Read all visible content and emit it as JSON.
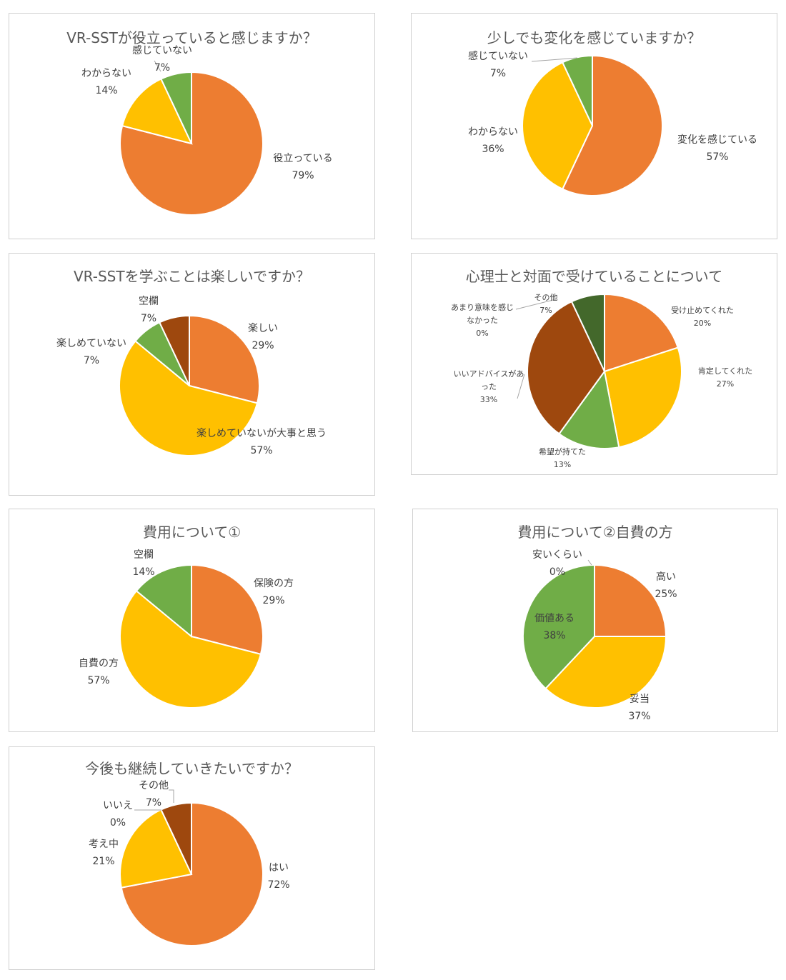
{
  "colors": {
    "orange": "#ED7D31",
    "gold": "#FFC000",
    "green": "#70AD47",
    "brown": "#9E480E",
    "darkgreen": "#43682B"
  },
  "chart_data": [
    {
      "type": "pie",
      "title": "VR-SSTが役立っていると感じますか？",
      "slices": [
        {
          "name": "役立っている",
          "value": 79,
          "label": "79%",
          "color": "#ED7D31"
        },
        {
          "name": "わからない",
          "value": 14,
          "label": "14%",
          "color": "#FFC000"
        },
        {
          "name": "感じていない",
          "value": 7,
          "label": "7%",
          "color": "#70AD47"
        }
      ]
    },
    {
      "type": "pie",
      "title": "少しでも変化を感じていますか？",
      "slices": [
        {
          "name": "変化を感じている",
          "value": 57,
          "label": "57%",
          "color": "#ED7D31"
        },
        {
          "name": "わからない",
          "value": 36,
          "label": "36%",
          "color": "#FFC000"
        },
        {
          "name": "感じていない",
          "value": 7,
          "label": "7%",
          "color": "#70AD47"
        }
      ]
    },
    {
      "type": "pie",
      "title": "VR-SSTを学ぶことは楽しいですか？",
      "slices": [
        {
          "name": "楽しい",
          "value": 29,
          "label": "29%",
          "color": "#ED7D31"
        },
        {
          "name": "楽しめていないが大事と思う",
          "value": 57,
          "label": "57%",
          "color": "#FFC000"
        },
        {
          "name": "楽しめていない",
          "value": 7,
          "label": "7%",
          "color": "#70AD47"
        },
        {
          "name": "空欄",
          "value": 7,
          "label": "7%",
          "color": "#9E480E"
        }
      ]
    },
    {
      "type": "pie",
      "title": "心理士と対面で受けていることについて",
      "slices": [
        {
          "name": "受け止めてくれた",
          "value": 20,
          "label": "20%",
          "color": "#ED7D31"
        },
        {
          "name": "肯定してくれた",
          "value": 27,
          "label": "27%",
          "color": "#FFC000"
        },
        {
          "name": "希望が持てた",
          "value": 13,
          "label": "13%",
          "color": "#70AD47"
        },
        {
          "name": "いいアドバイスがあった",
          "value": 33,
          "label": "33%",
          "color": "#9E480E"
        },
        {
          "name": "あまり意味を感じなかった",
          "value": 0,
          "label": "0%",
          "color": "#264478"
        },
        {
          "name": "その他",
          "value": 7,
          "label": "7%",
          "color": "#43682B"
        }
      ]
    },
    {
      "type": "pie",
      "title": "費用について①",
      "slices": [
        {
          "name": "保険の方",
          "value": 29,
          "label": "29%",
          "color": "#ED7D31"
        },
        {
          "name": "自費の方",
          "value": 57,
          "label": "57%",
          "color": "#FFC000"
        },
        {
          "name": "空欄",
          "value": 14,
          "label": "14%",
          "color": "#70AD47"
        }
      ]
    },
    {
      "type": "pie",
      "title": "費用について②自費の方",
      "slices": [
        {
          "name": "高い",
          "value": 25,
          "label": "25%",
          "color": "#ED7D31"
        },
        {
          "name": "妥当",
          "value": 37,
          "label": "37%",
          "color": "#FFC000"
        },
        {
          "name": "価値ある",
          "value": 38,
          "label": "38%",
          "color": "#70AD47"
        },
        {
          "name": "安いくらい",
          "value": 0,
          "label": "0%",
          "color": "#9E480E"
        }
      ]
    },
    {
      "type": "pie",
      "title": "今後も継続していきたいですか？",
      "slices": [
        {
          "name": "はい",
          "value": 72,
          "label": "72%",
          "color": "#ED7D31"
        },
        {
          "name": "考え中",
          "value": 21,
          "label": "21%",
          "color": "#FFC000"
        },
        {
          "name": "いいえ",
          "value": 0,
          "label": "0%",
          "color": "#70AD47"
        },
        {
          "name": "その他",
          "value": 7,
          "label": "7%",
          "color": "#9E480E"
        }
      ]
    }
  ]
}
